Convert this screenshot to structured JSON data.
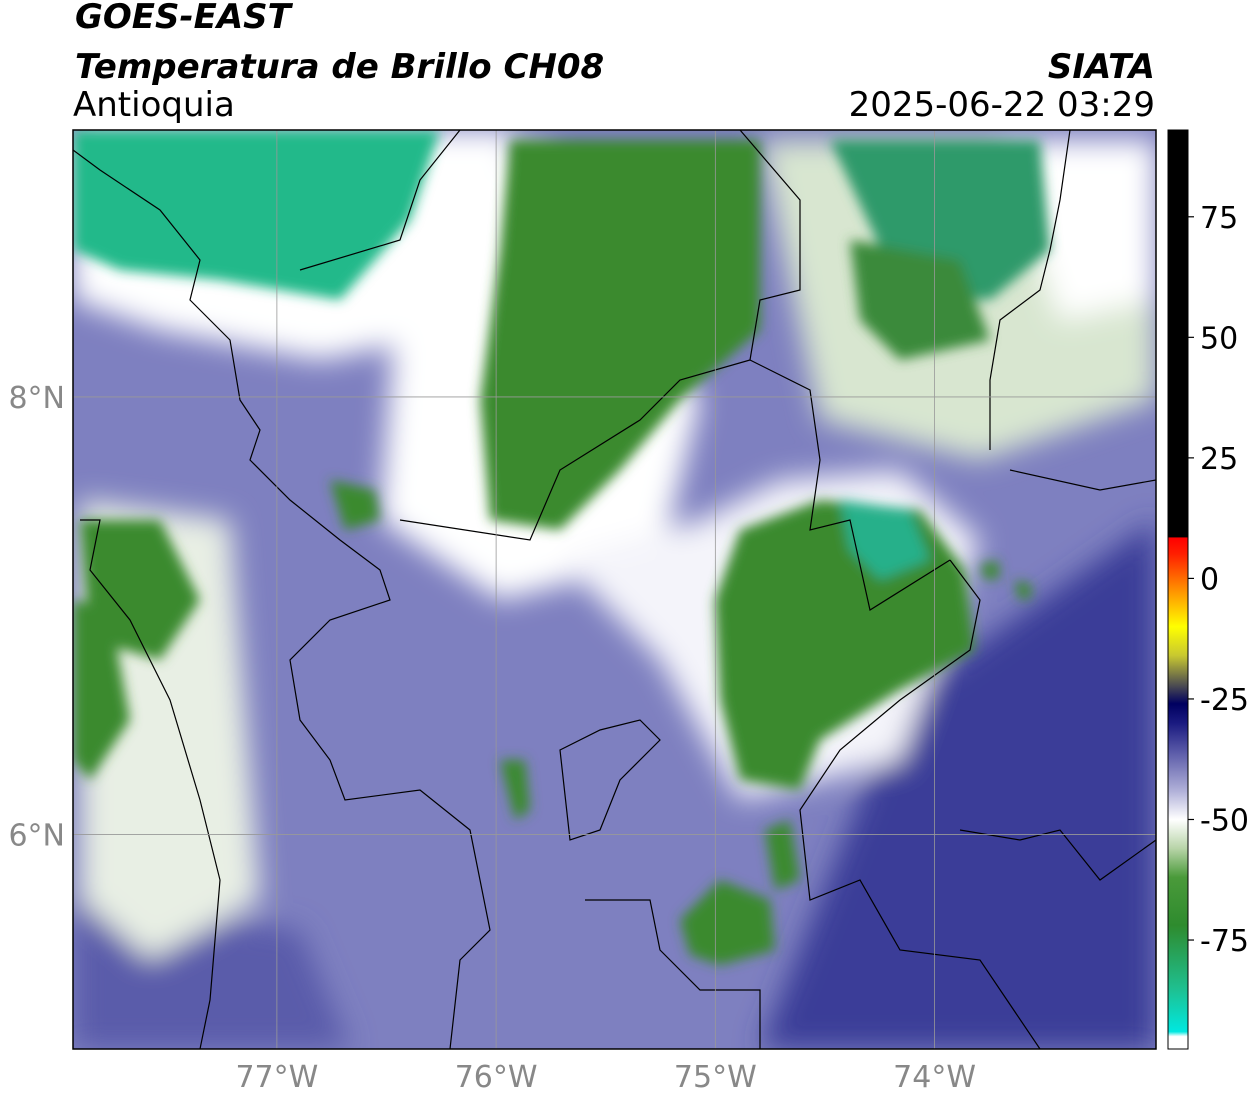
{
  "header": {
    "satellite": "GOES-EAST",
    "product": "Temperatura de Brillo CH08",
    "region": "Antioquia",
    "agency": "SIATA",
    "datetime": "2025-06-22 03:29"
  },
  "chart_data": {
    "type": "map",
    "xlim": [
      -77.93,
      -72.99
    ],
    "ylim": [
      5.02,
      9.22
    ],
    "xticks": [
      {
        "value": -77,
        "label": "77°W"
      },
      {
        "value": -76,
        "label": "76°W"
      },
      {
        "value": -75,
        "label": "75°W"
      },
      {
        "value": -74,
        "label": "74°W"
      }
    ],
    "yticks": [
      {
        "value": 6,
        "label": "6°N"
      },
      {
        "value": 8,
        "label": "8°N"
      }
    ],
    "grid": true,
    "colorbar": {
      "lim": [
        -97.6,
        93
      ],
      "ticks": [
        -75,
        -50,
        -25,
        0,
        25,
        50,
        75
      ],
      "stops": [
        {
          "value": -97.6,
          "color": "#ffffff"
        },
        {
          "value": -95,
          "color": "#ffffff"
        },
        {
          "value": -94,
          "color": "#00e8e0"
        },
        {
          "value": -85,
          "color": "#1fbf8f"
        },
        {
          "value": -72,
          "color": "#2e8b2e"
        },
        {
          "value": -62,
          "color": "#4a9a3a"
        },
        {
          "value": -56,
          "color": "#b8d4a8"
        },
        {
          "value": -50,
          "color": "#ffffff"
        },
        {
          "value": -44,
          "color": "#b0b0d8"
        },
        {
          "value": -36,
          "color": "#5a5aa8"
        },
        {
          "value": -30,
          "color": "#1a1a80"
        },
        {
          "value": -26,
          "color": "#000060"
        },
        {
          "value": -22,
          "color": "#505050"
        },
        {
          "value": -16,
          "color": "#c8c830"
        },
        {
          "value": -10,
          "color": "#ffff00"
        },
        {
          "value": -3,
          "color": "#ff9900"
        },
        {
          "value": 5,
          "color": "#ff2000"
        },
        {
          "value": 8.4,
          "color": "#ff0000"
        },
        {
          "value": 8.6,
          "color": "#000000"
        },
        {
          "value": 93,
          "color": "#000000"
        }
      ]
    }
  }
}
